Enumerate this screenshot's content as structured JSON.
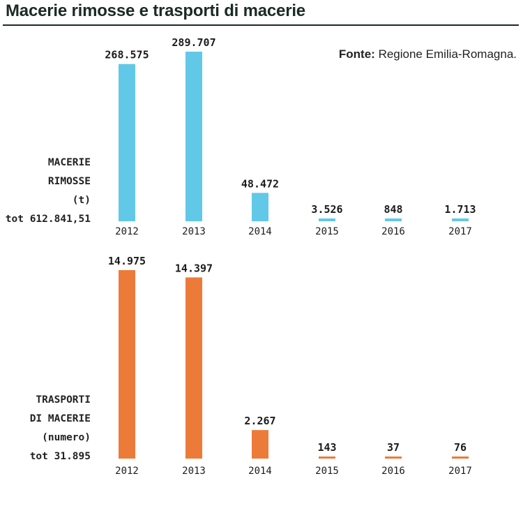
{
  "title": "Macerie rimosse e trasporti di macerie",
  "source": {
    "label": "Fonte:",
    "text": "Regione Emilia-Romagna."
  },
  "colors": {
    "rimosse": "#62c8e8",
    "trasporti": "#ec7b3a"
  },
  "panels": [
    {
      "label_lines": [
        "MACERIE",
        "RIMOSSE",
        "(t)",
        "tot 612.841,51"
      ]
    },
    {
      "label_lines": [
        "TRASPORTI",
        "DI MACERIE",
        "(numero)",
        "tot 31.895"
      ]
    }
  ],
  "chart_data": [
    {
      "type": "bar",
      "title": "",
      "xlabel": "",
      "ylabel": "",
      "categories": [
        "2012",
        "2013",
        "2014",
        "2015",
        "2016",
        "2017"
      ],
      "values": [
        268575,
        289707,
        48472,
        3526,
        848,
        1713
      ],
      "value_labels": [
        "268.575",
        "289.707",
        "48.472",
        "3.526",
        "848",
        "1.713"
      ],
      "color": "#62c8e8",
      "grid": false
    },
    {
      "type": "bar",
      "title": "",
      "xlabel": "",
      "ylabel": "",
      "categories": [
        "2012",
        "2013",
        "2014",
        "2015",
        "2016",
        "2017"
      ],
      "values": [
        14975,
        14397,
        2267,
        143,
        37,
        76
      ],
      "value_labels": [
        "14.975",
        "14.397",
        "2.267",
        "143",
        "37",
        "76"
      ],
      "color": "#ec7b3a",
      "grid": false
    }
  ]
}
